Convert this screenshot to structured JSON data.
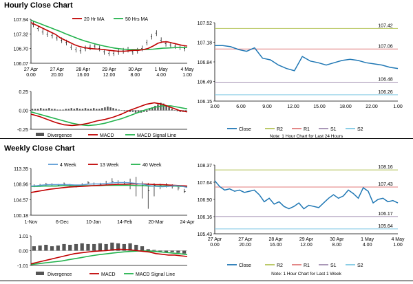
{
  "sections": {
    "hourly_title": "Hourly Close Chart",
    "weekly_title": "Weekly Close Chart"
  },
  "colors": {
    "close_line": "#1f77b4",
    "ma_fast": "#c00000",
    "ma_slow": "#22b24c",
    "macd": "#c00000",
    "signal": "#22b24c",
    "divergence": "#555555",
    "r2": "#b5c45a",
    "r1": "#e07a7a",
    "s1": "#a08db0",
    "s2": "#7ec8e3",
    "wk4": "#5b9bd5",
    "wk13": "#c00000",
    "wk40": "#22b24c"
  },
  "chart_data": [
    {
      "id": "hourly_price",
      "type": "line",
      "legend": [
        "20 Hr MA",
        "50 Hrs MA"
      ],
      "ylim": [
        106.07,
        107.94
      ],
      "yticks": [
        "107.94",
        "107.32",
        "106.70",
        "106.07"
      ],
      "xticks": [
        "27 Apr\n0.00",
        "27 Apr\n20.00",
        "28 Apr\n16.00",
        "29 Apr\n12.00",
        "30 Apr\n8.00",
        "1 May\n4.00",
        "4 May\n1.00"
      ],
      "close": [
        107.72,
        107.55,
        107.4,
        107.3,
        107.25,
        107.15,
        107.05,
        106.95,
        106.75,
        106.65,
        106.6,
        106.7,
        106.75,
        106.8,
        106.7,
        106.55,
        106.5,
        106.5,
        106.55,
        106.6,
        106.65,
        106.55,
        106.6,
        106.7,
        106.95,
        107.2,
        107.35,
        107.05,
        106.9,
        106.85,
        106.8,
        106.75,
        106.7
      ],
      "ma20": [
        107.8,
        107.7,
        107.6,
        107.5,
        107.4,
        107.3,
        107.15,
        107.05,
        106.95,
        106.85,
        106.78,
        106.73,
        106.7,
        106.68,
        106.67,
        106.65,
        106.62,
        106.6,
        106.58,
        106.58,
        106.6,
        106.62,
        106.62,
        106.65,
        106.7,
        106.8,
        106.92,
        106.98,
        106.98,
        106.93,
        106.88,
        106.83,
        106.8
      ],
      "ma50": [
        107.9,
        107.82,
        107.74,
        107.66,
        107.58,
        107.5,
        107.42,
        107.33,
        107.25,
        107.17,
        107.09,
        107.02,
        106.96,
        106.9,
        106.85,
        106.8,
        106.76,
        106.72,
        106.69,
        106.67,
        106.66,
        106.65,
        106.65,
        106.65,
        106.66,
        106.67,
        106.69,
        106.71,
        106.72,
        106.73,
        106.74,
        106.74,
        106.74
      ]
    },
    {
      "id": "hourly_macd",
      "type": "line",
      "legend": [
        "Divergence",
        "MACD",
        "MACD Signal Line"
      ],
      "ylim": [
        -0.25,
        0.25
      ],
      "yticks": [
        "0.25",
        "0.00",
        "-0.25"
      ],
      "divergence": [
        0.02,
        0.02,
        0.02,
        0.03,
        0.02,
        0.02,
        0.03,
        0.02,
        0.02,
        0.01,
        0.01,
        0.01,
        0.02,
        0.02,
        0.03,
        0.02,
        0.03,
        0.02,
        0.02,
        0.03,
        0.02,
        0.02,
        0.03,
        0.02,
        0.02,
        0.03,
        0.04,
        0.05,
        0.04,
        0.03,
        0.02,
        0.01,
        0,
        -0.01,
        -0.01,
        -0.02,
        -0.02,
        -0.03,
        -0.02,
        -0.03,
        -0.02,
        -0.02,
        0.03,
        0.04,
        0.06,
        0.08,
        0.1,
        0.09,
        0.06,
        0.04,
        0.02,
        0.0,
        -0.01,
        -0.02,
        -0.02,
        -0.02
      ],
      "macd": [
        -0.05,
        -0.08,
        -0.12,
        -0.16,
        -0.19,
        -0.2,
        -0.19,
        -0.17,
        -0.14,
        -0.12,
        -0.09,
        -0.05,
        0.0,
        0.04,
        0.08,
        0.1,
        0.08,
        0.04,
        0.0,
        -0.02
      ],
      "signal": [
        -0.02,
        -0.05,
        -0.08,
        -0.11,
        -0.14,
        -0.17,
        -0.19,
        -0.2,
        -0.19,
        -0.17,
        -0.14,
        -0.11,
        -0.07,
        -0.03,
        0.01,
        0.04,
        0.06,
        0.06,
        0.04,
        0.02
      ]
    },
    {
      "id": "hourly_24h",
      "type": "line",
      "note": "Note: 1 Hour Chart for Last 24 Hours",
      "ylim": [
        106.15,
        107.52
      ],
      "yticks": [
        "107.52",
        "107.18",
        "106.84",
        "106.49",
        "106.15"
      ],
      "xticks": [
        "3.00",
        "6.00",
        "9.00",
        "12.00",
        "15.00",
        "18.00",
        "22.00",
        "1.00"
      ],
      "levels": {
        "R2": 107.42,
        "R1": 107.06,
        "S1": 106.48,
        "S2": 106.26
      },
      "level_labels": {
        "R2": "107.42",
        "R1": "107.06",
        "S1": "106.48",
        "S2": "106.26"
      },
      "legend": [
        "Close",
        "R2",
        "R1",
        "S1",
        "S2"
      ],
      "close": [
        107.12,
        107.12,
        107.1,
        107.05,
        107.02,
        107.08,
        106.9,
        106.87,
        106.78,
        106.72,
        106.68,
        106.93,
        106.85,
        106.82,
        106.78,
        106.82,
        106.86,
        106.88,
        106.86,
        106.82,
        106.8,
        106.78,
        106.74,
        106.72
      ]
    },
    {
      "id": "weekly_price",
      "type": "line",
      "legend": [
        "4 Week",
        "13 Week",
        "40 Week"
      ],
      "ylim": [
        100.18,
        113.35
      ],
      "yticks": [
        "113.35",
        "108.96",
        "104.57",
        "100.18"
      ],
      "xticks": [
        "1-Nov",
        "6-Dec",
        "10-Jan",
        "14-Feb",
        "20-Mar",
        "24-Apr"
      ],
      "close": [
        108.5,
        108.6,
        108.9,
        108.8,
        108.7,
        109.0,
        108.6,
        108.4,
        108.8,
        109.3,
        109.0,
        108.9,
        109.2,
        109.7,
        109.4,
        109.3,
        109.1,
        108.9,
        108.6,
        107.1,
        108.6,
        108.7,
        108.8,
        108.3,
        107.9,
        106.9
      ],
      "high": [
        108.9,
        109.0,
        109.3,
        109.2,
        109.0,
        109.4,
        109.0,
        108.8,
        109.2,
        109.8,
        109.4,
        109.3,
        109.9,
        110.6,
        110.0,
        109.8,
        110.5,
        111.0,
        109.7,
        109.3,
        109.2,
        109.1,
        109.2,
        108.9,
        108.5,
        107.6
      ],
      "low": [
        108.1,
        108.2,
        108.5,
        108.5,
        108.3,
        108.6,
        108.2,
        108.0,
        108.3,
        108.9,
        108.6,
        108.5,
        108.8,
        109.1,
        109.0,
        108.8,
        107.5,
        105.5,
        104.9,
        102.0,
        105.5,
        107.5,
        108.0,
        107.7,
        107.2,
        106.4
      ],
      "w4": [
        108.4,
        108.5,
        108.7,
        108.8,
        108.8,
        108.8,
        108.8,
        108.7,
        108.7,
        108.9,
        109.0,
        109.0,
        109.1,
        109.3,
        109.4,
        109.4,
        109.3,
        109.1,
        108.9,
        108.5,
        108.3,
        108.2,
        108.3,
        108.5,
        108.4,
        108.0
      ],
      "w13": [
        106.6,
        106.9,
        107.2,
        107.5,
        107.7,
        107.9,
        108.1,
        108.2,
        108.3,
        108.4,
        108.5,
        108.6,
        108.7,
        108.8,
        108.9,
        108.9,
        109.0,
        109.0,
        109.0,
        108.9,
        108.8,
        108.8,
        108.7,
        108.6,
        108.5,
        108.4
      ],
      "w40": [
        108.3,
        108.3,
        108.4,
        108.4,
        108.4,
        108.5,
        108.5,
        108.5,
        108.5,
        108.5,
        108.5,
        108.5,
        108.6,
        108.6,
        108.6,
        108.6,
        108.6,
        108.5,
        108.5,
        108.4,
        108.4,
        108.4,
        108.4,
        108.4,
        108.3,
        108.3
      ]
    },
    {
      "id": "weekly_macd",
      "type": "line",
      "legend": [
        "Divergence",
        "MACD",
        "MACD Signal Line"
      ],
      "ylim": [
        -1.01,
        1.01
      ],
      "yticks": [
        "1.01",
        "0.00",
        "-1.01"
      ],
      "divergence": [
        0.3,
        0.35,
        0.4,
        0.3,
        0.35,
        0.45,
        0.4,
        0.45,
        0.5,
        0.45,
        0.45,
        0.5,
        0.45,
        0.55,
        0.5,
        0.45,
        0.5,
        0.4,
        0.3,
        0.1,
        0.05,
        -0.05,
        -0.1,
        -0.1,
        -0.15,
        -0.2
      ],
      "macd": [
        -0.9,
        -0.8,
        -0.7,
        -0.6,
        -0.5,
        -0.4,
        -0.3,
        -0.2,
        -0.15,
        -0.1,
        -0.05,
        -0.02,
        0.0,
        0.05,
        0.1,
        0.08,
        0.05,
        0.0,
        -0.05,
        -0.1,
        -0.2,
        -0.25,
        -0.3,
        -0.3,
        -0.35,
        -0.4
      ],
      "signal": [
        -0.95,
        -0.9,
        -0.85,
        -0.8,
        -0.75,
        -0.7,
        -0.62,
        -0.55,
        -0.48,
        -0.4,
        -0.33,
        -0.27,
        -0.22,
        -0.17,
        -0.12,
        -0.08,
        -0.05,
        -0.03,
        -0.02,
        -0.03,
        -0.06,
        -0.1,
        -0.14,
        -0.18,
        -0.22,
        -0.27
      ]
    },
    {
      "id": "weekly_detail",
      "type": "line",
      "note": "Note: 1 Hour Chart for Last 1 Week",
      "ylim": [
        105.43,
        108.37
      ],
      "yticks": [
        "108.37",
        "107.64",
        "106.90",
        "106.16",
        "105.43"
      ],
      "xticks": [
        "27 Apr\n0.00",
        "27 Apr\n20.00",
        "28 Apr\n16.00",
        "29 Apr\n12.00",
        "30 Apr\n8.00",
        "1 May\n4.00",
        "4 May\n1.00"
      ],
      "levels": {
        "R2": 108.16,
        "R1": 107.43,
        "S1": 106.17,
        "S2": 105.64
      },
      "level_labels": {
        "R2": "108.16",
        "R1": "107.43",
        "S1": "106.17",
        "S2": "105.64"
      },
      "legend": [
        "Close",
        "R2",
        "R1",
        "S1",
        "S2"
      ],
      "close": [
        107.7,
        107.45,
        107.3,
        107.35,
        107.25,
        107.3,
        107.2,
        107.25,
        107.3,
        107.1,
        106.8,
        106.95,
        106.7,
        106.8,
        106.6,
        106.5,
        106.6,
        106.75,
        106.5,
        106.65,
        106.6,
        106.55,
        106.75,
        106.95,
        107.1,
        106.95,
        107.05,
        107.3,
        107.15,
        106.95,
        107.4,
        107.25,
        106.75,
        106.9,
        106.95,
        106.8,
        106.85,
        106.75
      ]
    }
  ]
}
